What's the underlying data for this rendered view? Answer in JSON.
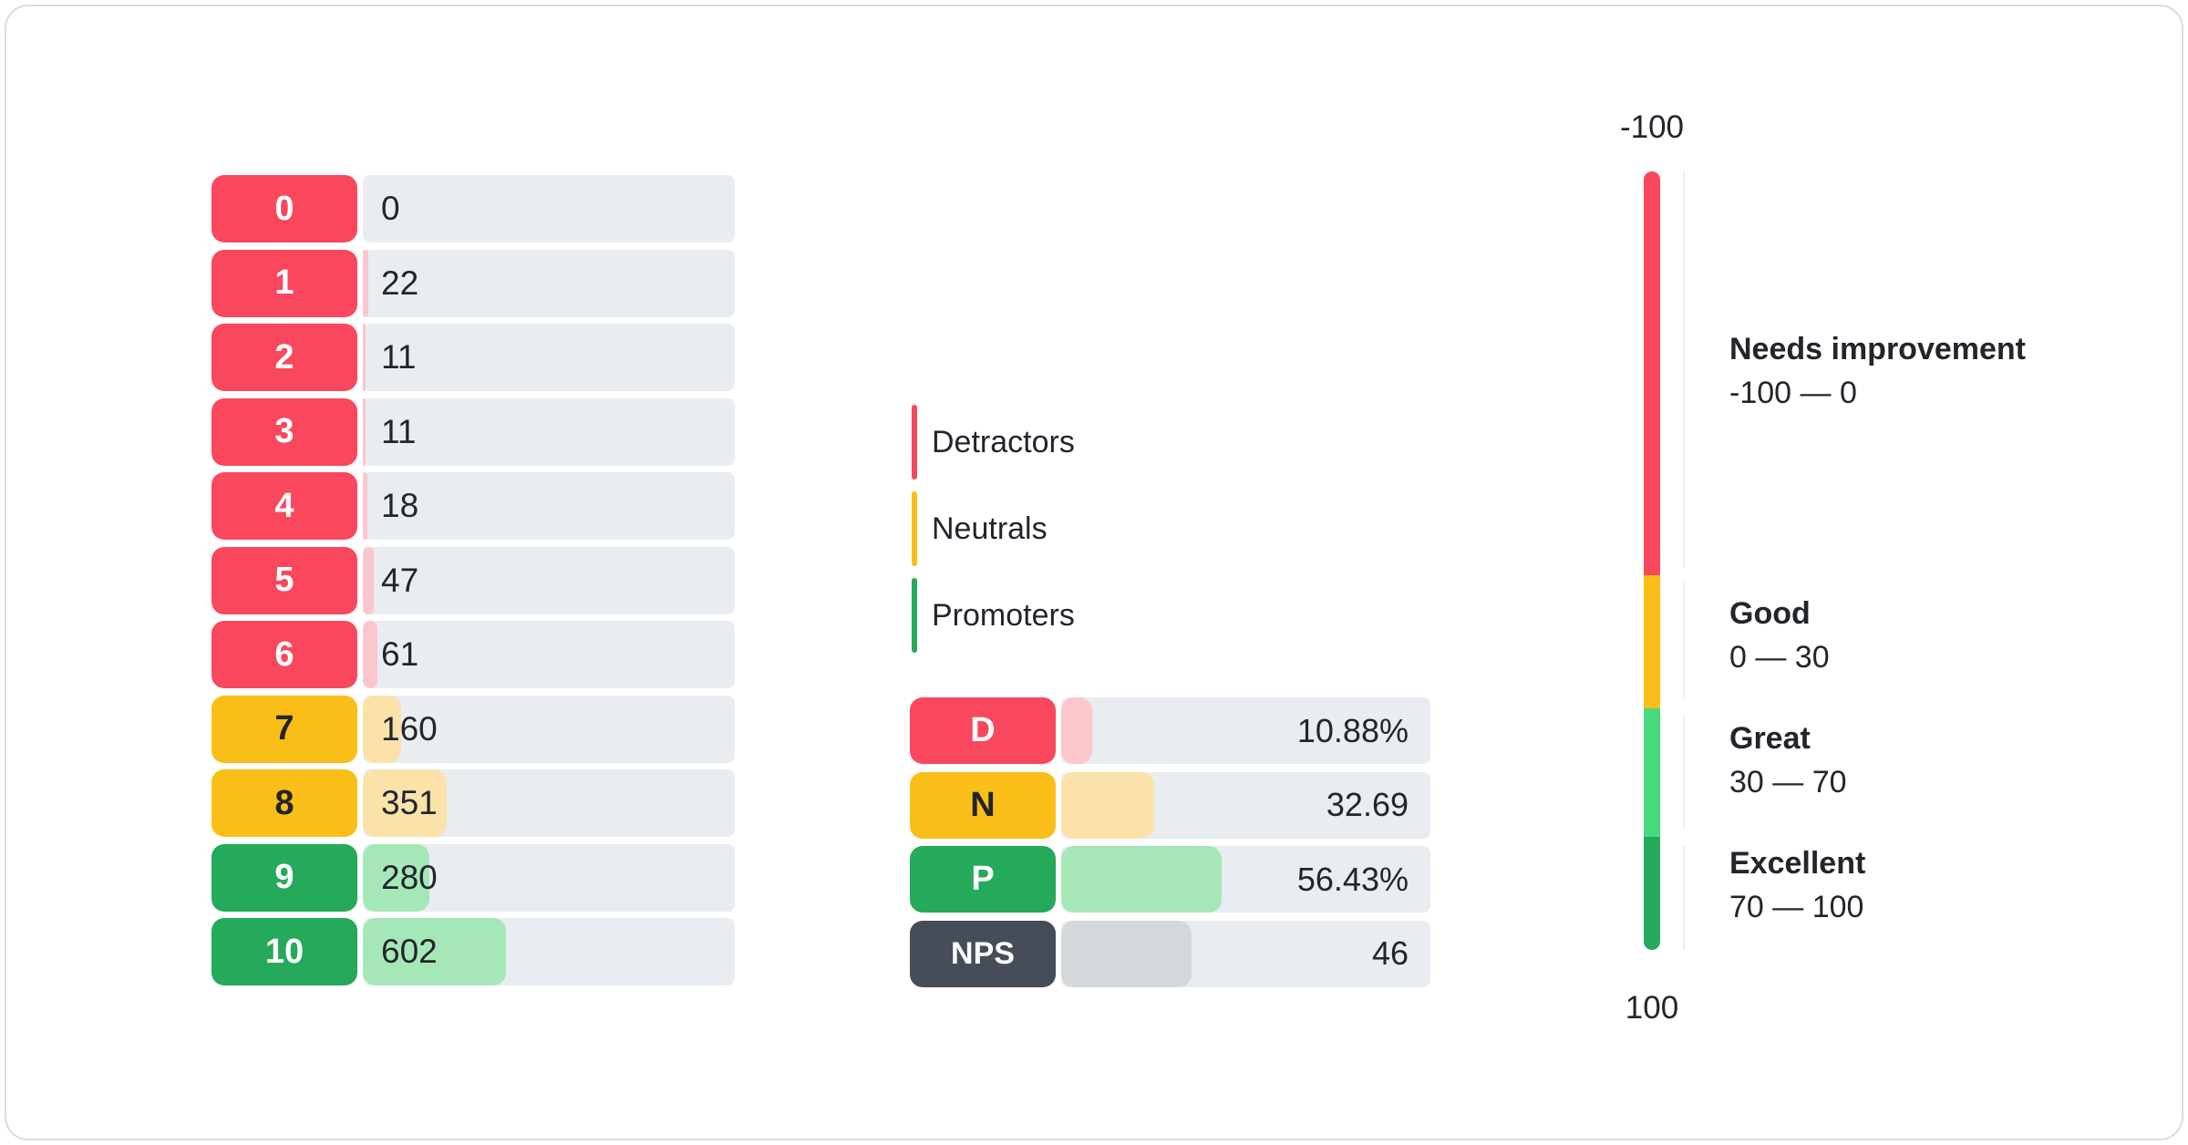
{
  "colors": {
    "red": "#f9485e",
    "red_light": "#fbc6cc",
    "amber": "#f9be18",
    "amber_light": "#fbe2a9",
    "green": "#25a95a",
    "green_light": "#a6e7b8",
    "green_bright": "#48d97e",
    "slate": "#464c58",
    "slate_light": "#d4d8db",
    "track": "#e9ecf0",
    "text": "#22252c",
    "sep": "#ededf1",
    "card_border": "#d8dcdf"
  },
  "legend": {
    "items": [
      {
        "label": "Detractors",
        "color_key": "red"
      },
      {
        "label": "Neutrals",
        "color_key": "amber"
      },
      {
        "label": "Promoters",
        "color_key": "green"
      }
    ]
  },
  "chart_data": [
    {
      "type": "bar",
      "name": "score-distribution",
      "orientation": "horizontal",
      "categories": [
        "0",
        "1",
        "2",
        "3",
        "4",
        "5",
        "6",
        "7",
        "8",
        "9",
        "10"
      ],
      "values": [
        0,
        22,
        11,
        11,
        18,
        47,
        61,
        160,
        351,
        280,
        602
      ],
      "groups": [
        "detractor",
        "detractor",
        "detractor",
        "detractor",
        "detractor",
        "detractor",
        "detractor",
        "neutral",
        "neutral",
        "promoter",
        "promoter"
      ],
      "bar_scale": "fill width = value / total of all values"
    },
    {
      "type": "bar",
      "name": "nps-summary",
      "orientation": "horizontal",
      "rows": [
        {
          "label": "D",
          "value": 10.88,
          "display": "10.88%",
          "group": "detractor"
        },
        {
          "label": "N",
          "value": 32.69,
          "display": "32.69",
          "group": "neutral"
        },
        {
          "label": "P",
          "value": 56.43,
          "display": "56.43%",
          "group": "promoter"
        },
        {
          "label": "NPS",
          "value": 46,
          "display": "46",
          "group": "nps"
        }
      ],
      "bar_scale_max": 130
    },
    {
      "type": "gauge",
      "name": "nps-scale",
      "range": [
        -100,
        100
      ],
      "axis_top_label": "-100",
      "axis_bottom_label": "100",
      "zones": [
        {
          "title": "Needs improvement",
          "range_label": "-100 — 0",
          "from": -100,
          "to": 0,
          "color_key": "red"
        },
        {
          "title": "Good",
          "range_label": "0 — 30",
          "from": 0,
          "to": 30,
          "color_key": "amber"
        },
        {
          "title": "Great",
          "range_label": "30 — 70",
          "from": 30,
          "to": 70,
          "color_key": "green_bright"
        },
        {
          "title": "Excellent",
          "range_label": "70 — 100",
          "from": 70,
          "to": 100,
          "color_key": "green"
        }
      ],
      "segment_height_pct": [
        51.9,
        17.1,
        16.5,
        14.5
      ]
    }
  ]
}
